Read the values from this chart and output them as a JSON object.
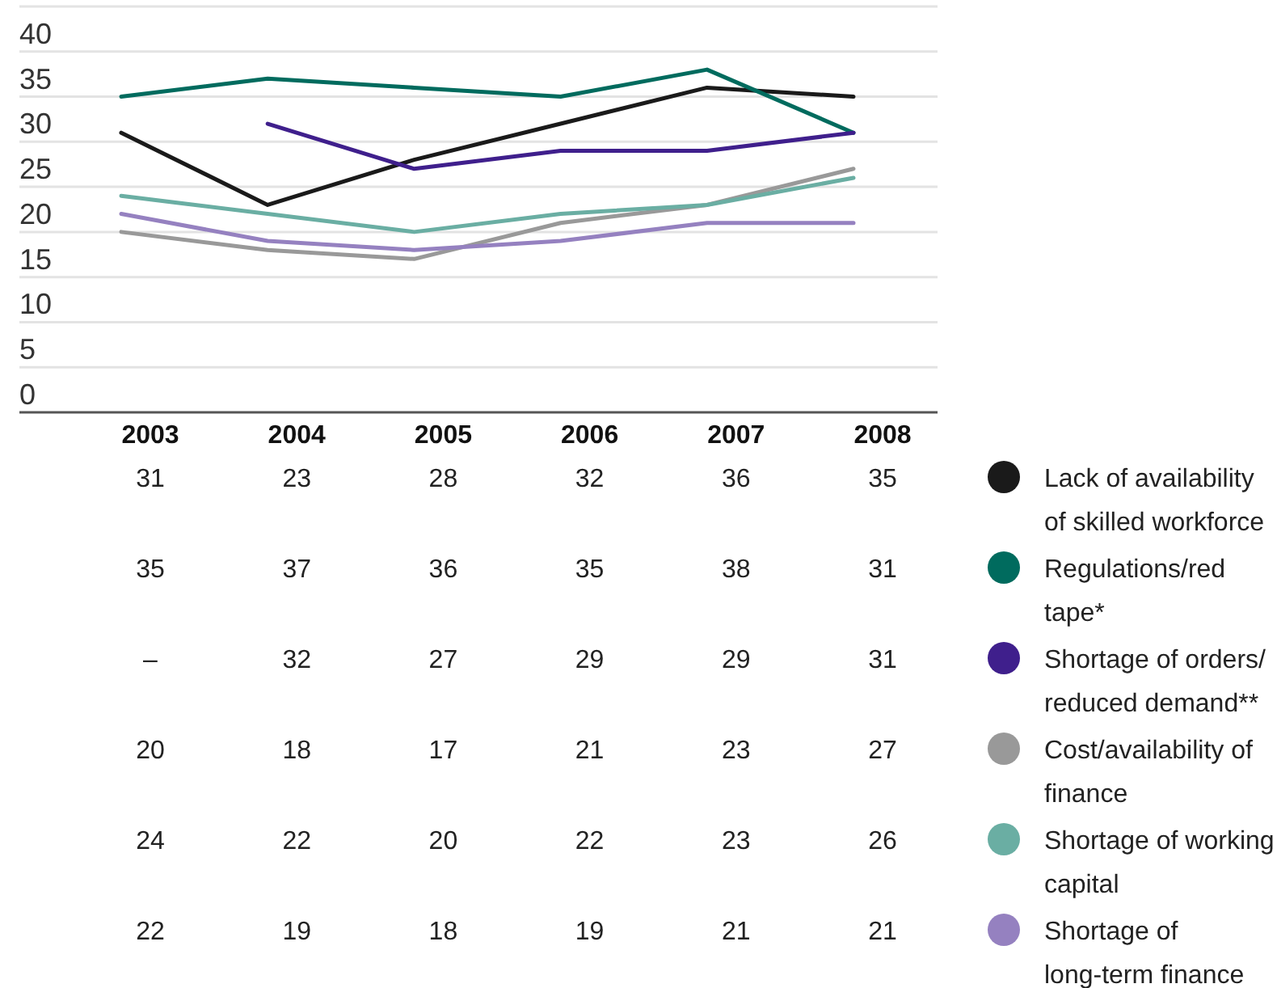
{
  "chart_data": {
    "type": "line",
    "categories": [
      "2003",
      "2004",
      "2005",
      "2006",
      "2007",
      "2008"
    ],
    "ylim": [
      0,
      45
    ],
    "yticks": [
      0,
      5,
      10,
      15,
      20,
      25,
      30,
      35,
      40,
      {
        "value": 45,
        "label": null
      }
    ],
    "grid": "y",
    "legend": "right",
    "marker": "none",
    "line_style": "solid",
    "series": [
      {
        "name": "Lack of availability of skilled workforce",
        "color": "#1a1a1a",
        "values": [
          31,
          23,
          28,
          32,
          36,
          35
        ],
        "value_labels": [
          "31",
          "23",
          "28",
          "32",
          "36",
          "35"
        ]
      },
      {
        "name": "Regulations/red tape*",
        "color": "#006b5e",
        "values": [
          35,
          37,
          36,
          35,
          38,
          31
        ],
        "value_labels": [
          "35",
          "37",
          "36",
          "35",
          "38",
          "31"
        ]
      },
      {
        "name": "Shortage of orders/reduced demand**",
        "color": "#3f1f8c",
        "values": [
          null,
          32,
          27,
          29,
          29,
          31
        ],
        "value_labels": [
          "–",
          "32",
          "27",
          "29",
          "29",
          "31"
        ]
      },
      {
        "name": "Cost/availability of finance",
        "color": "#999999",
        "values": [
          20,
          18,
          17,
          21,
          23,
          27
        ],
        "value_labels": [
          "20",
          "18",
          "17",
          "21",
          "23",
          "27"
        ]
      },
      {
        "name": "Shortage of working capital",
        "color": "#6aaea3",
        "values": [
          24,
          22,
          20,
          22,
          23,
          26
        ],
        "value_labels": [
          "24",
          "22",
          "20",
          "22",
          "23",
          "26"
        ]
      },
      {
        "name": "Shortage of long-term finance",
        "color": "#9581c0",
        "values": [
          22,
          19,
          18,
          19,
          21,
          21
        ],
        "value_labels": [
          "22",
          "19",
          "18",
          "19",
          "21",
          "21"
        ]
      }
    ]
  }
}
